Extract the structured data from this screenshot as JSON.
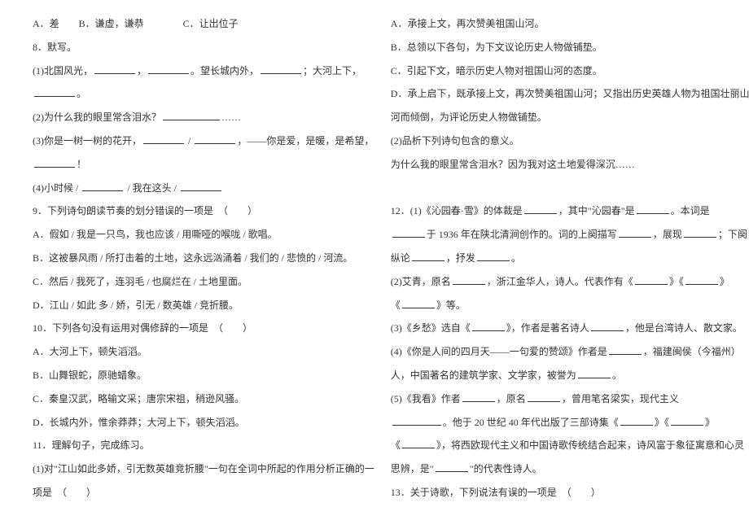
{
  "left": {
    "l1": "A．差　　B．谦虚，谦恭　　　　C．让出位子",
    "l2": "8．默写。",
    "l3a": "(1)北国风光，",
    "l3b": "，",
    "l3c": "。望长城内外，",
    "l3d": "；大河上下，",
    "l4": "。",
    "l5a": "(2)为什么我的眼里常含泪水？",
    "l5b": "……",
    "l6a": "(3)你是一树一树的花开，",
    "l6b": " / ",
    "l6c": "，——你是爱，是暖，是希望，",
    "l7": "！",
    "l8a": "(4)小时候 / ",
    "l8b": " / 我在这头 / ",
    "l9": "9．下列诗句朗读节奏的划分错误的一项是　（　　）",
    "l10": "A．假如 / 我是一只鸟，我也应该 / 用嘶哑的喉咙 / 歌唱。",
    "l11": "B．这被暴风雨 / 所打击着的土地，这永远汹涌着 / 我们的 / 悲愤的 / 河流。",
    "l12": "C．然后 / 我死了，连羽毛 / 也腐烂在 / 土地里面。",
    "l13": "D．江山 / 如此 多 / 娇，引无 / 数英雄 / 竞折腰。",
    "l14": "10．下列各句没有运用对偶修辞的一项是　（　　）",
    "l15": "A．大河上下，顿失滔滔。",
    "l16": "B．山舞银蛇，原驰蜡象。",
    "l17": "C．秦皇汉武，略输文采；唐宗宋祖，稍逊风骚。",
    "l18": "D．长城内外，惟余莽莽；大河上下，顿失滔滔。",
    "l19": "11．理解句子，完成练习。",
    "l20": "(1)对\"江山如此多娇，引无数英雄竞折腰\"一句在全词中所起的作用分析正确的一",
    "l21": "项是　（　　）"
  },
  "right": {
    "r1": "A．承接上文，再次赞美祖国山河。",
    "r2": "B．总领以下各句，为下文议论历史人物做铺垫。",
    "r3": "C．引起下文，暗示历史人物对祖国山河的态度。",
    "r4": "D．承上启下，既承接上文，再次赞美祖国山河；又指出历史英雄人物为祖国壮丽山",
    "r5": "河而倾倒，为评论历史人物做铺垫。",
    "r6": "(2)品析下列诗句包含的意义。",
    "r7": "为什么我的眼里常含泪水？因为我对这土地爱得深沉……",
    "r8a": "12．(1)《沁园春·雪》的体裁是",
    "r8b": "，其中\"沁园春\"是",
    "r8c": "。本词是",
    "r9a": "于 1936 年在陕北清涧创作的。词的上阕描写",
    "r9b": "，展现",
    "r9c": "；下阕",
    "r10a": "纵论",
    "r10b": "，抒发",
    "r10c": "。",
    "r11a": "(2)艾青，原名",
    "r11b": "，浙江金华人，诗人。代表作有《",
    "r11c": "》《",
    "r11d": "》",
    "r12a": "《",
    "r12b": "》等。",
    "r13a": "(3)《乡愁》选自《",
    "r13b": "》，作者是著名诗人",
    "r13c": "，他是台湾诗人、散文家。",
    "r14a": "(4)《你是人间的四月天——一句爱的赞颂》作者是",
    "r14b": "，福建闽侯（今福州）",
    "r15a": "人，中国著名的建筑学家、文学家，被誉为",
    "r15b": "。",
    "r16a": "(5)《我看》作者",
    "r16b": "，原名",
    "r16c": "，曾用笔名梁实，现代主义",
    "r17a": "。他于 20 世纪 40 年代出版了三部诗集《",
    "r17b": "》《",
    "r17c": "》",
    "r18a": "《",
    "r18b": "》，将西欧现代主义和中国诗歌传统结合起来，诗风富于象征寓意和心灵",
    "r19a": "思辨，是\"",
    "r19b": "\"的代表性诗人。",
    "r20": "13．关于诗歌，下列说法有误的一项是　（　　）"
  }
}
